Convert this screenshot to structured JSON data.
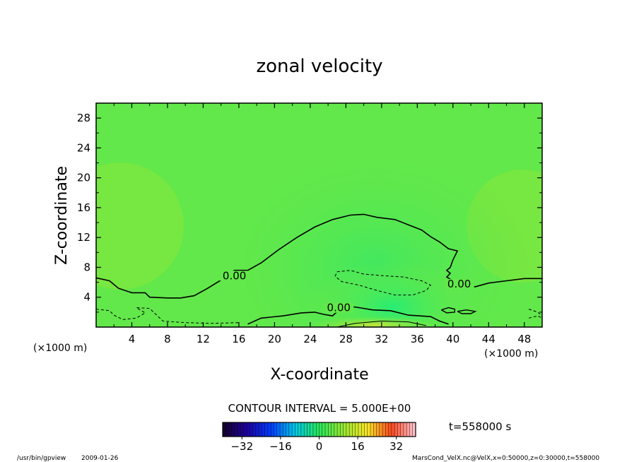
{
  "chart_data": {
    "type": "heatmap",
    "title": "zonal velocity",
    "xlabel": "X-coordinate",
    "ylabel": "Z-coordinate",
    "x_unit_label": "(×1000 m)",
    "y_unit_label": "(×1000 m)",
    "xlim": [
      0,
      50
    ],
    "ylim": [
      0,
      30
    ],
    "x_ticks": [
      4,
      8,
      12,
      16,
      20,
      24,
      28,
      32,
      36,
      40,
      44,
      48
    ],
    "y_ticks": [
      4,
      8,
      12,
      16,
      20,
      24,
      28
    ],
    "contour_interval_label": "CONTOUR INTERVAL = 5.000E+00",
    "contour_labels": [
      "0.00",
      "0.00",
      "0.00"
    ],
    "time_label": "t=558000 s",
    "colorbar": {
      "range": [
        -40,
        40
      ],
      "ticks": [
        -32,
        -16,
        0,
        16,
        32
      ]
    },
    "zero_contour": [
      [
        0,
        6.6
      ],
      [
        1.5,
        6.2
      ],
      [
        2.5,
        5.2
      ],
      [
        4,
        4.6
      ],
      [
        5.5,
        4.6
      ],
      [
        6,
        4
      ],
      [
        8,
        3.9
      ],
      [
        9.5,
        3.9
      ],
      [
        10,
        4
      ],
      [
        11,
        4.2
      ],
      [
        12.5,
        5.2
      ],
      [
        14,
        6.3
      ],
      [
        15.5,
        7.6
      ],
      [
        17,
        7.6
      ],
      [
        18.5,
        8.6
      ],
      [
        20.5,
        10.4
      ],
      [
        22.5,
        12
      ],
      [
        24.5,
        13.4
      ],
      [
        26.5,
        14.4
      ],
      [
        28.5,
        15
      ],
      [
        30,
        15.1
      ],
      [
        31.5,
        14.7
      ],
      [
        33.5,
        14.4
      ],
      [
        35,
        13.7
      ],
      [
        36.5,
        13
      ],
      [
        37.5,
        12.1
      ],
      [
        38.5,
        11.4
      ],
      [
        39.5,
        10.5
      ],
      [
        40.5,
        10.2
      ],
      [
        40,
        9
      ],
      [
        39.7,
        8
      ],
      [
        39.3,
        7.6
      ],
      [
        39.7,
        7.2
      ],
      [
        39.3,
        6.7
      ],
      [
        40,
        6.2
      ],
      [
        41,
        5.6
      ],
      [
        42.5,
        5.4
      ],
      [
        44,
        5.9
      ],
      [
        46,
        6.2
      ],
      [
        48,
        6.5
      ],
      [
        50,
        6.5
      ]
    ],
    "zero_contour_near_surface": [
      [
        17,
        0.4
      ],
      [
        18.5,
        1.2
      ],
      [
        21,
        1.5
      ],
      [
        23,
        1.9
      ],
      [
        24.5,
        2
      ],
      [
        25.5,
        1.7
      ],
      [
        26.5,
        1.5
      ],
      [
        27.5,
        2.6
      ],
      [
        29,
        2.7
      ],
      [
        31,
        2.3
      ],
      [
        33,
        2.2
      ],
      [
        35,
        1.6
      ],
      [
        37.5,
        1.4
      ],
      [
        38.5,
        0.8
      ],
      [
        39.5,
        0.4
      ]
    ],
    "negative_contour": [
      [
        27,
        7.4
      ],
      [
        28.5,
        7.6
      ],
      [
        30,
        7.1
      ],
      [
        32,
        6.9
      ],
      [
        34.5,
        6.7
      ],
      [
        36.5,
        6.2
      ],
      [
        37.5,
        5.6
      ],
      [
        37,
        4.9
      ],
      [
        35.5,
        4.3
      ],
      [
        33.5,
        4.3
      ],
      [
        31.5,
        4.9
      ],
      [
        29.5,
        5.6
      ],
      [
        27.5,
        6.1
      ],
      [
        26.8,
        6.8
      ],
      [
        27,
        7.4
      ]
    ]
  },
  "footer": {
    "program": "/usr/bin/gpview",
    "date": "2009-01-26",
    "source": "MarsCond_VelX.nc@VelX,x=0:50000,z=0:30000,t=558000"
  }
}
